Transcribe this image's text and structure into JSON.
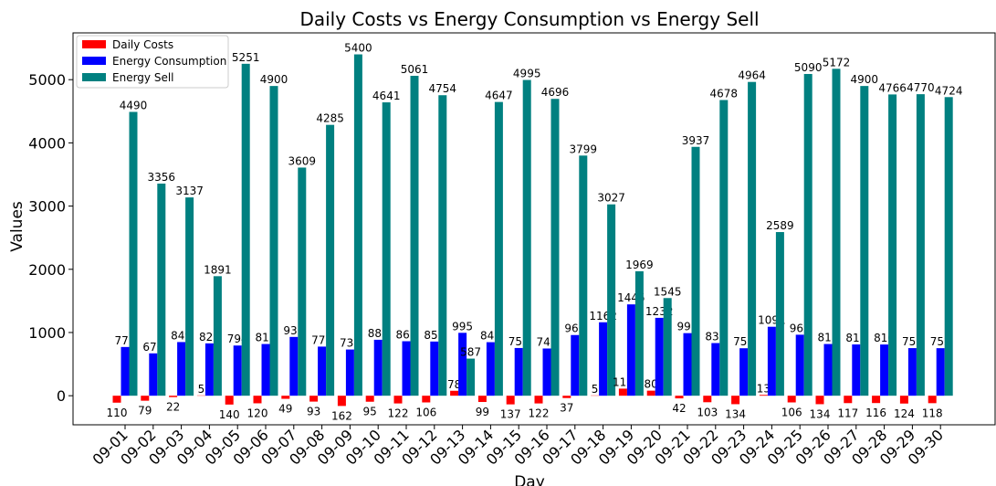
{
  "chart_data": {
    "type": "bar",
    "title": "Daily Costs vs Energy Consumption vs Energy Sell",
    "x_label": "Day",
    "y_label": "Values",
    "categories": [
      "09-01",
      "09-02",
      "09-03",
      "09-04",
      "09-05",
      "09-06",
      "09-07",
      "09-08",
      "09-09",
      "09-10",
      "09-11",
      "09-12",
      "09-13",
      "09-14",
      "09-15",
      "09-16",
      "09-17",
      "09-18",
      "09-19",
      "09-20",
      "09-21",
      "09-22",
      "09-23",
      "09-24",
      "09-25",
      "09-26",
      "09-27",
      "09-28",
      "09-29",
      "09-30"
    ],
    "series": [
      {
        "name": "Daily Costs",
        "color": "#ff0000",
        "values": [
          -110,
          -79,
          -22,
          5,
          -140,
          -120,
          -49,
          -93,
          -162,
          -95,
          -122,
          -106,
          78,
          -99,
          -137,
          -122,
          -37,
          5,
          112,
          80,
          -42,
          -103,
          -134,
          13,
          -106,
          -134,
          -117,
          -116,
          -124,
          -118
        ],
        "value_labels": [
          "110",
          "79",
          "22",
          "5",
          "140",
          "120",
          "49",
          "93",
          "162",
          "95",
          "122",
          "106",
          "78",
          "99",
          "137",
          "122",
          "37",
          "5",
          "112",
          "80",
          "42",
          "103",
          "134",
          "13",
          "106",
          "134",
          "117",
          "116",
          "124",
          "118"
        ]
      },
      {
        "name": "Energy Consumption",
        "color": "#0000ff",
        "values": [
          771,
          670,
          849,
          828,
          794,
          818,
          930,
          777,
          731,
          885,
          862,
          857,
          995,
          847,
          755,
          747,
          960,
          1162,
          1445,
          1232,
          990,
          833,
          751,
          1091,
          965,
          818,
          811,
          810,
          753,
          752
        ]
      },
      {
        "name": "Energy Sell",
        "color": "#008080",
        "values": [
          4490,
          3356,
          3137,
          1891,
          5251,
          4900,
          3609,
          4285,
          5400,
          4641,
          5061,
          4754,
          587,
          4647,
          4995,
          4696,
          3799,
          3027,
          1969,
          1545,
          3937,
          4678,
          4964,
          2589,
          5090,
          5172,
          4900,
          4766,
          4770,
          4724
        ]
      }
    ],
    "ylim": [
      -460,
      5740
    ],
    "yticks": [
      0,
      1000,
      2000,
      3000,
      4000,
      5000
    ],
    "legend": "upper left"
  }
}
